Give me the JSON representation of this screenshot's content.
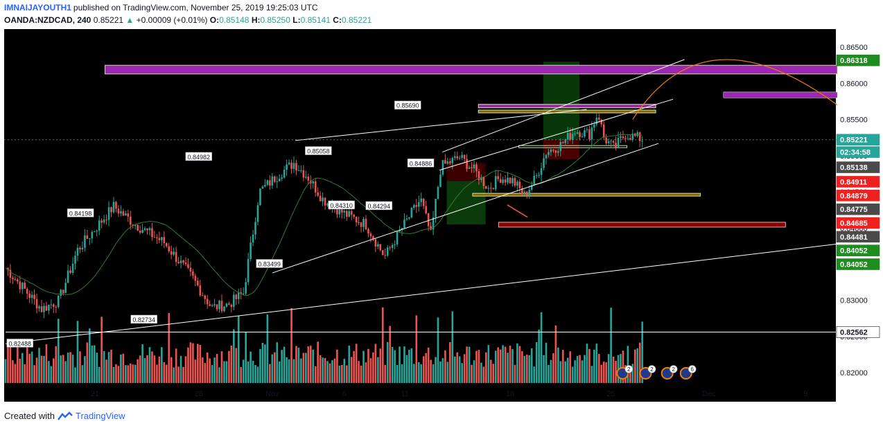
{
  "header": {
    "user": "IMNAIJAYOUTH1",
    "published": "published on TradingView.com, November 25, 2019 19:25:03 UTC",
    "symbol": "OANDA:NZDCAD, 240",
    "last": "0.85221",
    "change": "+0.00009 (+0.01%)",
    "o_label": "O:",
    "o": "0.85148",
    "h_label": "H:",
    "h": "0.85250",
    "l_label": "L:",
    "l": "0.85141",
    "c_label": "C:",
    "c": "0.85221"
  },
  "footer": {
    "created": "Created with",
    "brand": "TradingView"
  },
  "colors": {
    "up": "#26a69a",
    "down": "#ef5350",
    "purple": "#9c27b0",
    "dark_red": "#8b0000",
    "orange": "#f57c00",
    "ma": "#2e7d32",
    "green_zone": "#0a3d0a",
    "red_zone": "#4a0000"
  },
  "chart_data": {
    "type": "candlestick",
    "y_range": [
      0.816,
      0.8675
    ],
    "y_ticks": [
      "0.86500",
      "0.86000",
      "0.85500",
      "0.85000",
      "0.84500",
      "0.84000",
      "0.83500",
      "0.83000",
      "0.82500",
      "0.82000"
    ],
    "x_ticks": [
      "21",
      "28",
      "Nov",
      "6",
      "11",
      "18",
      "25",
      "Dec",
      "9"
    ],
    "anchor_points": [
      {
        "d": 0,
        "p": 0.8345
      },
      {
        "d": 2.5,
        "p": 0.8288
      },
      {
        "d": 3.7,
        "p": 0.83
      },
      {
        "d": 5.0,
        "p": 0.837
      },
      {
        "d": 7.5,
        "p": 0.843
      },
      {
        "d": 9.0,
        "p": 0.8405
      },
      {
        "d": 11.0,
        "p": 0.838
      },
      {
        "d": 13.0,
        "p": 0.833
      },
      {
        "d": 14.3,
        "p": 0.829
      },
      {
        "d": 15.5,
        "p": 0.8295
      },
      {
        "d": 16.5,
        "p": 0.831
      },
      {
        "d": 17.6,
        "p": 0.845
      },
      {
        "d": 19.0,
        "p": 0.8475
      },
      {
        "d": 20.0,
        "p": 0.849
      },
      {
        "d": 21.0,
        "p": 0.847
      },
      {
        "d": 22.0,
        "p": 0.844
      },
      {
        "d": 23.5,
        "p": 0.842
      },
      {
        "d": 25.0,
        "p": 0.8405
      },
      {
        "d": 26.3,
        "p": 0.836
      },
      {
        "d": 27.5,
        "p": 0.84
      },
      {
        "d": 28.8,
        "p": 0.844
      },
      {
        "d": 29.5,
        "p": 0.839
      },
      {
        "d": 30.2,
        "p": 0.8485
      },
      {
        "d": 31.5,
        "p": 0.8498
      },
      {
        "d": 32.5,
        "p": 0.848
      },
      {
        "d": 33.5,
        "p": 0.8455
      },
      {
        "d": 34.3,
        "p": 0.847
      },
      {
        "d": 35.2,
        "p": 0.8465
      },
      {
        "d": 36.0,
        "p": 0.8445
      },
      {
        "d": 36.8,
        "p": 0.847
      },
      {
        "d": 37.5,
        "p": 0.8505
      },
      {
        "d": 38.5,
        "p": 0.8515
      },
      {
        "d": 39.5,
        "p": 0.8535
      },
      {
        "d": 40.5,
        "p": 0.853
      },
      {
        "d": 41.1,
        "p": 0.856
      },
      {
        "d": 41.5,
        "p": 0.8525
      },
      {
        "d": 42.2,
        "p": 0.851
      },
      {
        "d": 43.0,
        "p": 0.853
      },
      {
        "d": 43.8,
        "p": 0.8525
      },
      {
        "d": 44.3,
        "p": 0.8522
      }
    ],
    "volume_range": [
      0,
      100
    ],
    "labels": [
      {
        "text": "0.82488",
        "d": 1.0,
        "p": 0.824
      },
      {
        "text": "0.84198",
        "d": 5.2,
        "p": 0.842
      },
      {
        "text": "0.82734",
        "d": 9.6,
        "p": 0.8273
      },
      {
        "text": "0.84982",
        "d": 13.4,
        "p": 0.8498
      },
      {
        "text": "0.83499",
        "d": 18.3,
        "p": 0.835
      },
      {
        "text": "0.85058",
        "d": 21.7,
        "p": 0.8506
      },
      {
        "text": "0.84310",
        "d": 23.3,
        "p": 0.8431
      },
      {
        "text": "0.84294",
        "d": 25.9,
        "p": 0.843
      },
      {
        "text": "0.85690",
        "d": 27.9,
        "p": 0.8569
      },
      {
        "text": "0.84886",
        "d": 28.8,
        "p": 0.8489
      }
    ],
    "price_tags": [
      {
        "text": "0.86318",
        "p": 0.86318,
        "bg": "#1e8c1e",
        "fg": "#ffffff"
      },
      {
        "text": "0.85221",
        "p": 0.85221,
        "bg": "#26a69a",
        "fg": "#ffffff"
      },
      {
        "text": "02:34:58",
        "p": 0.8505,
        "bg": "#26a69a",
        "fg": "#ffffff"
      },
      {
        "text": "0.85138",
        "p": 0.8484,
        "bg": "#4a4a4a",
        "fg": "#ffffff"
      },
      {
        "text": "0.84911",
        "p": 0.8464,
        "bg": "#ef2020",
        "fg": "#ffffff"
      },
      {
        "text": "0.84879",
        "p": 0.8445,
        "bg": "#ef2020",
        "fg": "#ffffff"
      },
      {
        "text": "0.84775",
        "p": 0.8426,
        "bg": "#4a4a4a",
        "fg": "#ffffff"
      },
      {
        "text": "0.84685",
        "p": 0.8407,
        "bg": "#ef2020",
        "fg": "#ffffff"
      },
      {
        "text": "0.84481",
        "p": 0.8388,
        "bg": "#4a4a4a",
        "fg": "#ffffff"
      },
      {
        "text": "0.84052",
        "p": 0.8369,
        "bg": "#1e8c1e",
        "fg": "#ffffff"
      },
      {
        "text": "0.84052",
        "p": 0.835,
        "bg": "#1e8c1e",
        "fg": "#ffffff"
      },
      {
        "text": "0.82562",
        "p": 0.82562,
        "bg": "#ffffff",
        "fg": "#131722"
      }
    ],
    "event_badges": [
      "2",
      "2",
      "2",
      "6"
    ],
    "moving_average": true,
    "grid": false
  }
}
